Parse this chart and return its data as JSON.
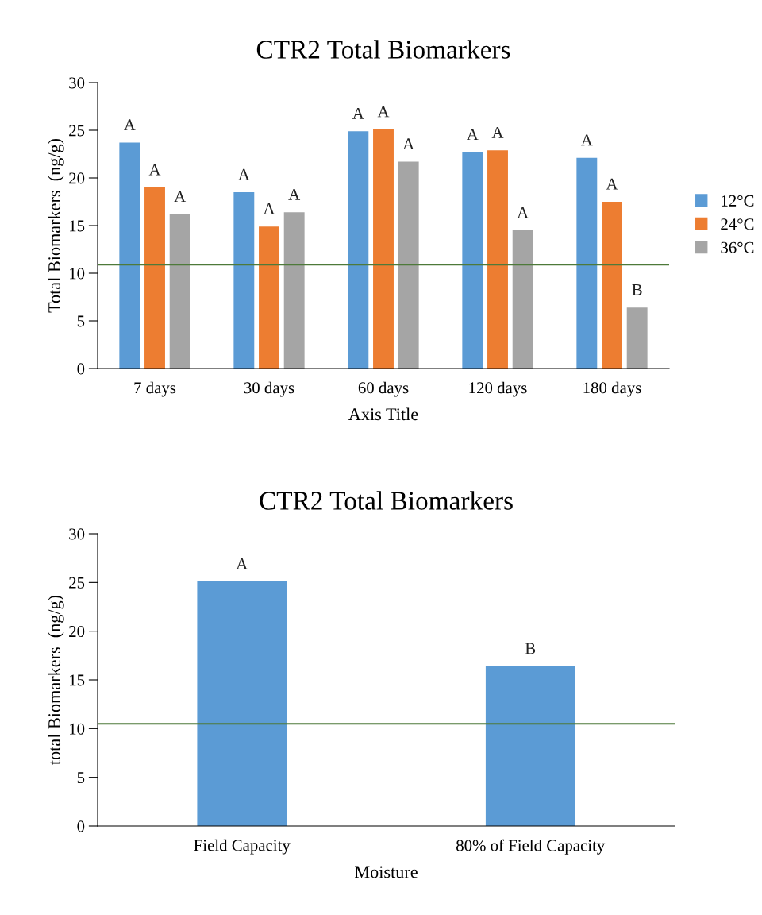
{
  "chart_data": [
    {
      "type": "bar",
      "title": "CTR2 Total Biomarkers",
      "xlabel": "Axis Title",
      "ylabel": "Total Biomarkers  (ng/g)",
      "categories": [
        "7 days",
        "30 days",
        "60 days",
        "120 days",
        "180 days"
      ],
      "series": [
        {
          "name": "12°C",
          "color": "#5b9bd5",
          "values": [
            23.7,
            18.5,
            24.9,
            22.7,
            22.1
          ],
          "value_labels": [
            "A",
            "A",
            "A",
            "A",
            "A"
          ]
        },
        {
          "name": "24°C",
          "color": "#ed7d31",
          "values": [
            19.0,
            14.9,
            25.1,
            22.9,
            17.5
          ],
          "value_labels": [
            "A",
            "A",
            "A",
            "A",
            "A"
          ]
        },
        {
          "name": "36°C",
          "color": "#a5a5a5",
          "values": [
            16.2,
            16.4,
            21.7,
            14.5,
            6.4
          ],
          "value_labels": [
            "A",
            "A",
            "A",
            "A",
            "B"
          ]
        }
      ],
      "ylim": [
        0,
        30
      ],
      "yticks": [
        0,
        5,
        10,
        15,
        20,
        25,
        30
      ],
      "grid": false,
      "legend": "right",
      "ref_lines": [
        {
          "axis": "y",
          "value": 10.9,
          "color": "#4e7a3a"
        }
      ]
    },
    {
      "type": "bar",
      "title": "CTR2 Total Biomarkers",
      "xlabel": "Moisture",
      "ylabel": "total Biomarkers  (ng/g)",
      "categories": [
        "Field Capacity",
        "80% of Field Capacity"
      ],
      "series": [
        {
          "color": "#5b9bd5",
          "values": [
            25.1,
            16.4
          ],
          "value_labels": [
            "A",
            "B"
          ]
        }
      ],
      "ylim": [
        0,
        30
      ],
      "yticks": [
        0,
        5,
        10,
        15,
        20,
        25,
        30
      ],
      "grid": false,
      "legend": false,
      "ref_lines": [
        {
          "axis": "y",
          "value": 10.5,
          "color": "#4e7a3a"
        }
      ]
    }
  ]
}
